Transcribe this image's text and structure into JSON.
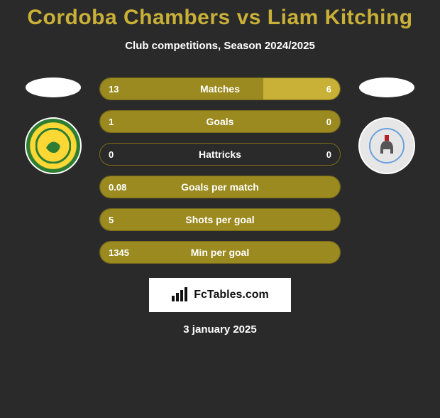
{
  "title": {
    "left": "Cordoba Chambers",
    "vs": "vs",
    "right": "Liam Kitching",
    "color": "#c9b037"
  },
  "subtitle": "Club competitions, Season 2024/2025",
  "date": "3 january 2025",
  "logo_text": "FcTables.com",
  "bar_colors": {
    "left": "#9b8a1f",
    "right": "#c9b037",
    "border": "#7a6b1a"
  },
  "text_color": "#ffffff",
  "background": "#2a2a2a",
  "stats": [
    {
      "label": "Matches",
      "left_val": "13",
      "right_val": "6",
      "left_pct": 68,
      "right_pct": 32
    },
    {
      "label": "Goals",
      "left_val": "1",
      "right_val": "0",
      "left_pct": 100,
      "right_pct": 0
    },
    {
      "label": "Hattricks",
      "left_val": "0",
      "right_val": "0",
      "left_pct": 0,
      "right_pct": 0
    },
    {
      "label": "Goals per match",
      "left_val": "0.08",
      "right_val": "",
      "left_pct": 100,
      "right_pct": 0
    },
    {
      "label": "Shots per goal",
      "left_val": "5",
      "right_val": "",
      "left_pct": 100,
      "right_pct": 0
    },
    {
      "label": "Min per goal",
      "left_val": "1345",
      "right_val": "",
      "left_pct": 100,
      "right_pct": 0
    }
  ],
  "crests": {
    "left": {
      "name": "norwich-city-crest"
    },
    "right": {
      "name": "coventry-city-crest"
    }
  }
}
